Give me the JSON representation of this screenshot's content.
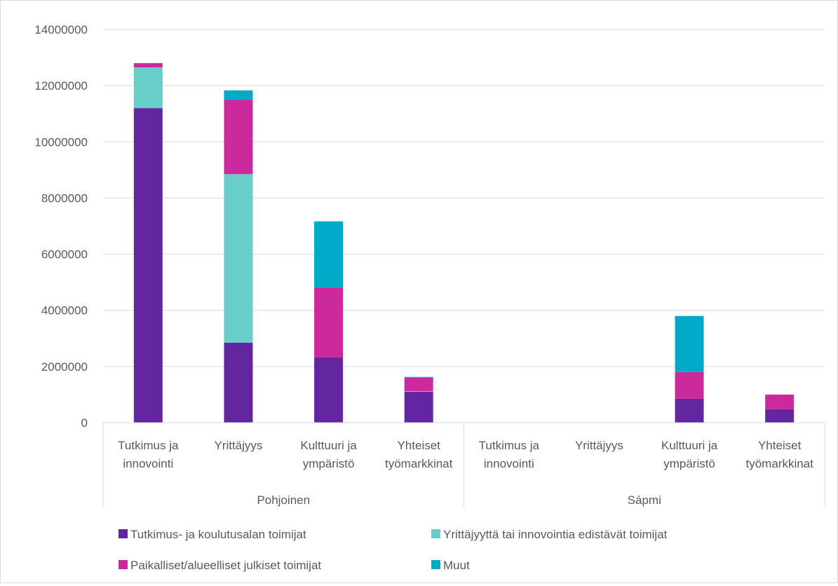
{
  "chart_data": {
    "type": "bar",
    "stacked": true,
    "title": "",
    "xlabel": "",
    "ylabel": "",
    "ylim": [
      0,
      14000000
    ],
    "yticks": [
      "0",
      "2000000",
      "4000000",
      "6000000",
      "8000000",
      "10000000",
      "12000000",
      "14000000"
    ],
    "ytick_values": [
      0,
      2000000,
      4000000,
      6000000,
      8000000,
      10000000,
      12000000,
      14000000
    ],
    "grid": true,
    "legend_position": "bottom",
    "groups": [
      {
        "label": "Pohjoinen",
        "categories": [
          [
            "Tutkimus ja",
            "innovointi"
          ],
          [
            "Yrittäjyys"
          ],
          [
            "Kulttuuri ja",
            "ympäristö"
          ],
          [
            "Yhteiset",
            "työmarkkinat"
          ]
        ]
      },
      {
        "label": "Sápmi",
        "categories": [
          [
            "Tutkimus ja",
            "innovointi"
          ],
          [
            "Yrittäjyys"
          ],
          [
            "Kulttuuri ja",
            "ympäristö"
          ],
          [
            "Yhteiset",
            "työmarkkinat"
          ]
        ]
      }
    ],
    "series": [
      {
        "name": "Tutkimus- ja koulutusalan toimijat",
        "color": "#6426a0",
        "values": [
          11200000,
          2850000,
          2320000,
          1100000,
          0,
          0,
          850000,
          480000
        ]
      },
      {
        "name": "Yrittäjyyttä tai innovointia edistävät toimijat",
        "color": "#66cdc8",
        "values": [
          1450000,
          6000000,
          0,
          20000,
          0,
          0,
          0,
          0
        ]
      },
      {
        "name": "Paikalliset/alueelliset julkiset toimijat",
        "color": "#cc2a9c",
        "values": [
          150000,
          2650000,
          2500000,
          480000,
          0,
          0,
          950000,
          520000
        ]
      },
      {
        "name": "Muut",
        "color": "#00aac8",
        "values": [
          0,
          330000,
          2350000,
          30000,
          0,
          0,
          2000000,
          0
        ]
      }
    ]
  }
}
